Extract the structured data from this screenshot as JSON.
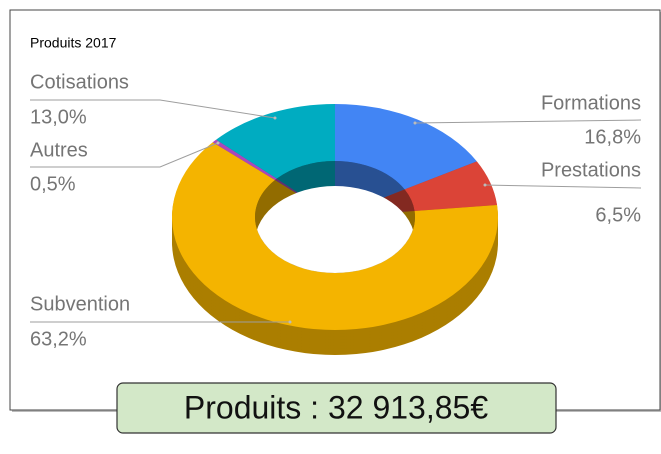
{
  "chart_data": {
    "type": "donut3d",
    "title": "Produits 2017",
    "categories": [
      "Formations",
      "Prestations",
      "Subvention",
      "Autres",
      "Cotisations"
    ],
    "values": [
      16.8,
      6.5,
      63.2,
      0.5,
      13.0
    ],
    "value_labels": [
      "16,8%",
      "6,5%",
      "63,2%",
      "0,5%",
      "13,0%"
    ],
    "colors": [
      "#4285f4",
      "#db4437",
      "#f4b400",
      "#ab47bc",
      "#00acc1"
    ],
    "annotation": "Produits : 32 913,85€"
  }
}
